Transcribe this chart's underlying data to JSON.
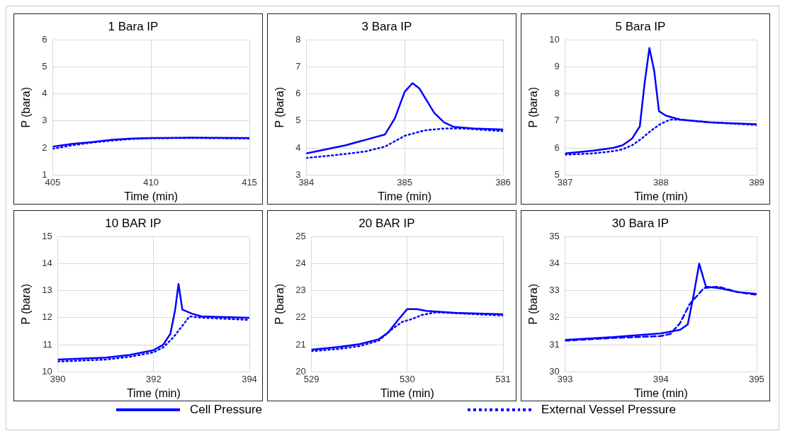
{
  "chart_data": [
    {
      "type": "line",
      "title": "1 Bara IP",
      "xlabel": "Time (min)",
      "ylabel": "P (bara)",
      "xlim": [
        405,
        415
      ],
      "xticks": [
        405,
        410,
        415
      ],
      "ylim": [
        1,
        6
      ],
      "yticks": [
        1,
        2,
        3,
        4,
        5,
        6
      ],
      "grid": true,
      "legend": "bottom",
      "marker": "none",
      "series": [
        {
          "name": "Cell Pressure",
          "color": "#0000ff",
          "line_style": "solid",
          "x": [
            405,
            406,
            407,
            408,
            409,
            410,
            412,
            415
          ],
          "values": [
            2.05,
            2.15,
            2.22,
            2.3,
            2.35,
            2.37,
            2.38,
            2.37
          ]
        },
        {
          "name": "External Vessel Pressure",
          "color": "#0000ff",
          "line_style": "dotted",
          "x": [
            405,
            406,
            407,
            408,
            409,
            410,
            412,
            415
          ],
          "values": [
            1.97,
            2.1,
            2.2,
            2.27,
            2.33,
            2.36,
            2.37,
            2.35
          ]
        }
      ]
    },
    {
      "type": "line",
      "title": "3 Bara IP",
      "xlabel": "Time (min)",
      "ylabel": "P (bara)",
      "xlim": [
        384,
        386
      ],
      "xticks": [
        384,
        385,
        386
      ],
      "ylim": [
        3,
        8
      ],
      "yticks": [
        3,
        4,
        5,
        6,
        7,
        8
      ],
      "grid": true,
      "marker": "none",
      "series": [
        {
          "color": "#0000ff",
          "line_style": "solid",
          "x": [
            384,
            384.2,
            384.4,
            384.6,
            384.8,
            384.9,
            385,
            385.08,
            385.15,
            385.3,
            385.4,
            385.5,
            385.7,
            386
          ],
          "values": [
            3.8,
            3.95,
            4.1,
            4.3,
            4.5,
            5.1,
            6.08,
            6.4,
            6.2,
            5.3,
            4.95,
            4.78,
            4.72,
            4.68
          ]
        },
        {
          "color": "#0000ff",
          "line_style": "dotted",
          "x": [
            384,
            384.2,
            384.4,
            384.6,
            384.8,
            385,
            385.2,
            385.4,
            385.6,
            386
          ],
          "values": [
            3.63,
            3.7,
            3.78,
            3.87,
            4.05,
            4.45,
            4.65,
            4.72,
            4.72,
            4.62
          ]
        }
      ]
    },
    {
      "type": "line",
      "title": "5 Bara IP",
      "xlabel": "Time (min)",
      "ylabel": "P (bara)",
      "xlim": [
        387,
        389
      ],
      "xticks": [
        387,
        388,
        389
      ],
      "ylim": [
        5,
        10
      ],
      "yticks": [
        5,
        6,
        7,
        8,
        9,
        10
      ],
      "grid": true,
      "marker": "none",
      "series": [
        {
          "color": "#0000ff",
          "line_style": "solid",
          "x": [
            387,
            387.3,
            387.5,
            387.6,
            387.7,
            387.78,
            387.83,
            387.88,
            387.93,
            387.98,
            388.05,
            388.2,
            388.5,
            389
          ],
          "values": [
            5.8,
            5.9,
            6.0,
            6.1,
            6.35,
            6.8,
            8.4,
            9.7,
            8.86,
            7.36,
            7.2,
            7.05,
            6.95,
            6.88
          ]
        },
        {
          "color": "#0000ff",
          "line_style": "dotted",
          "x": [
            387,
            387.3,
            387.5,
            387.6,
            387.7,
            387.8,
            387.9,
            388,
            388.1,
            388.2,
            388.5,
            389
          ],
          "values": [
            5.75,
            5.8,
            5.88,
            5.95,
            6.1,
            6.35,
            6.65,
            6.9,
            7.05,
            7.05,
            6.95,
            6.85
          ]
        }
      ]
    },
    {
      "type": "line",
      "title": "10 BAR IP",
      "xlabel": "Time (min)",
      "ylabel": "P (bara)",
      "xlim": [
        390,
        394
      ],
      "xticks": [
        390,
        392,
        394
      ],
      "ylim": [
        10,
        15
      ],
      "yticks": [
        10,
        11,
        12,
        13,
        14,
        15
      ],
      "grid": true,
      "marker": "none",
      "series": [
        {
          "color": "#0000ff",
          "line_style": "solid",
          "x": [
            390,
            391,
            391.5,
            392,
            392.2,
            392.35,
            392.45,
            392.52,
            392.6,
            392.8,
            393,
            394
          ],
          "values": [
            10.45,
            10.52,
            10.62,
            10.8,
            11.0,
            11.4,
            12.3,
            13.25,
            12.3,
            12.15,
            12.05,
            12.0
          ]
        },
        {
          "color": "#0000ff",
          "line_style": "dotted",
          "x": [
            390,
            391,
            391.5,
            392,
            392.2,
            392.4,
            392.6,
            392.75,
            393,
            394
          ],
          "values": [
            10.38,
            10.45,
            10.55,
            10.72,
            10.9,
            11.25,
            11.7,
            12.05,
            12.0,
            11.92
          ]
        }
      ]
    },
    {
      "type": "line",
      "title": "20 BAR IP",
      "xlabel": "Time (min)",
      "ylabel": "P (bara)",
      "xlim": [
        529,
        531
      ],
      "xticks": [
        529,
        530,
        531
      ],
      "ylim": [
        20,
        25
      ],
      "yticks": [
        20,
        21,
        22,
        23,
        24,
        25
      ],
      "grid": true,
      "marker": "none",
      "series": [
        {
          "color": "#0000ff",
          "line_style": "solid",
          "x": [
            529,
            529.3,
            529.5,
            529.7,
            529.8,
            529.9,
            530,
            530.1,
            530.2,
            530.5,
            531
          ],
          "values": [
            20.82,
            20.92,
            21.02,
            21.2,
            21.45,
            21.9,
            22.32,
            22.32,
            22.25,
            22.18,
            22.13
          ]
        },
        {
          "color": "#0000ff",
          "line_style": "dotted",
          "x": [
            529,
            529.3,
            529.5,
            529.7,
            529.85,
            529.95,
            530.05,
            530.15,
            530.3,
            530.6,
            531
          ],
          "values": [
            20.76,
            20.85,
            20.95,
            21.15,
            21.6,
            21.85,
            21.95,
            22.1,
            22.2,
            22.15,
            22.08
          ]
        }
      ]
    },
    {
      "type": "line",
      "title": "30 Bara IP",
      "xlabel": "Time (min)",
      "ylabel": "P (bara)",
      "xlim": [
        393,
        395
      ],
      "xticks": [
        393,
        394,
        395
      ],
      "ylim": [
        30,
        35
      ],
      "yticks": [
        30,
        31,
        32,
        33,
        34,
        35
      ],
      "grid": true,
      "marker": "none",
      "series": [
        {
          "color": "#0000ff",
          "line_style": "solid",
          "x": [
            393,
            393.5,
            394,
            394.2,
            394.28,
            394.34,
            394.4,
            394.47,
            394.6,
            394.8,
            395
          ],
          "values": [
            31.18,
            31.28,
            31.42,
            31.55,
            31.75,
            32.8,
            34.0,
            33.15,
            33.1,
            32.95,
            32.88
          ]
        },
        {
          "color": "#0000ff",
          "line_style": "dashed",
          "x": [
            393,
            393.5,
            394,
            394.1,
            394.2,
            394.3,
            394.45,
            394.6,
            394.8,
            395
          ],
          "values": [
            31.15,
            31.25,
            31.32,
            31.4,
            31.8,
            32.5,
            33.1,
            33.15,
            32.95,
            32.85
          ]
        }
      ]
    }
  ]
}
